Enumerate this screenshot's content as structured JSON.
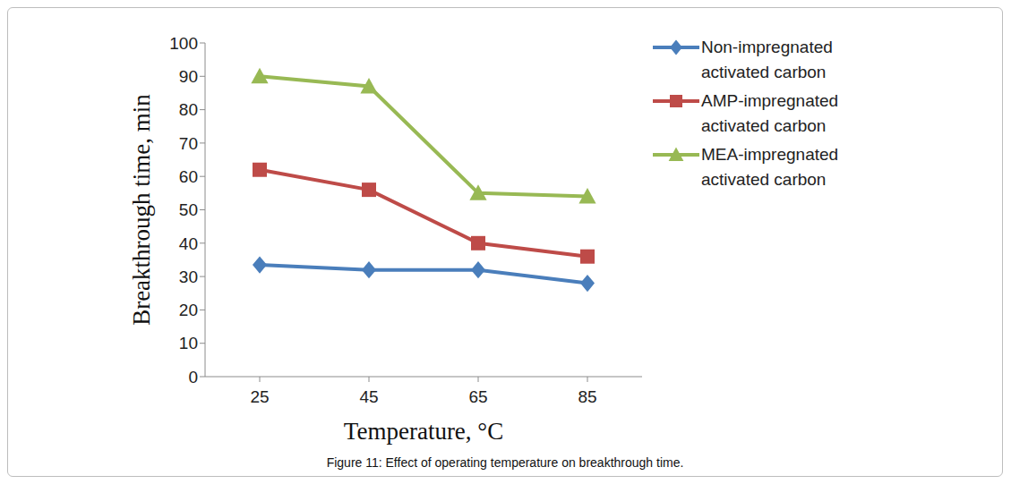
{
  "chart_data": {
    "type": "line",
    "caption": "Figure 11: Effect of operating temperature on breakthrough time.",
    "x_label": "Temperature, °C",
    "y_label": "Breakthrough time, min",
    "categories": [
      25,
      45,
      65,
      85
    ],
    "series": [
      {
        "name": "Non-impregnated activated carbon",
        "color": "#4a7ebb",
        "marker": "diamond",
        "values": [
          33.5,
          32,
          32,
          28
        ]
      },
      {
        "name": "AMP-impregnated activated carbon",
        "color": "#be4b48",
        "marker": "square",
        "values": [
          62,
          56,
          40,
          36
        ]
      },
      {
        "name": "MEA-impregnated activated carbon",
        "color": "#98b954",
        "marker": "triangle",
        "values": [
          90,
          87,
          55,
          54
        ]
      }
    ],
    "ylim": [
      0,
      100
    ],
    "yticks": [
      0,
      10,
      20,
      30,
      40,
      50,
      60,
      70,
      80,
      90,
      100
    ],
    "grid": false,
    "legend": "top-right"
  }
}
